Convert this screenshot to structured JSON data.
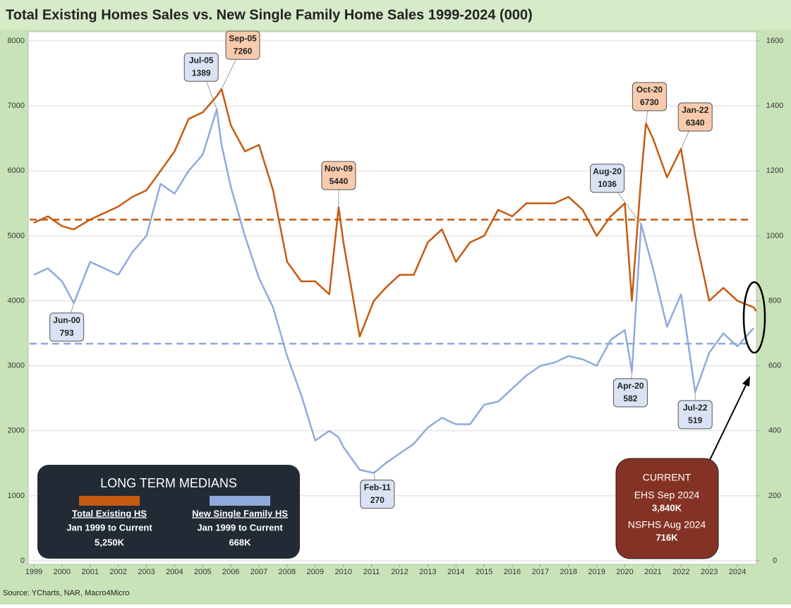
{
  "chart_data": {
    "type": "line",
    "title": "Total Existing Homes Sales vs. New Single Family Home Sales 1999-2024 (000)",
    "source": "Source: YCharts, NAR, Macro4Micro",
    "x": [
      1999.0,
      1999.5,
      2000.0,
      2000.42,
      2001.0,
      2001.5,
      2002.0,
      2002.5,
      2003.0,
      2003.5,
      2004.0,
      2004.5,
      2005.0,
      2005.5,
      2005.67,
      2006.0,
      2006.5,
      2007.0,
      2007.5,
      2008.0,
      2008.5,
      2009.0,
      2009.5,
      2009.83,
      2010.0,
      2010.58,
      2011.08,
      2011.5,
      2012.0,
      2012.5,
      2013.0,
      2013.5,
      2014.0,
      2014.5,
      2015.0,
      2015.5,
      2016.0,
      2016.5,
      2017.0,
      2017.5,
      2018.0,
      2018.5,
      2019.0,
      2019.5,
      2020.0,
      2020.25,
      2020.58,
      2020.75,
      2021.0,
      2021.5,
      2022.0,
      2022.5,
      2023.0,
      2023.5,
      2024.0,
      2024.58,
      2024.67
    ],
    "xlim": [
      1999,
      2024.7
    ],
    "xticks": [
      1999,
      2000,
      2001,
      2002,
      2003,
      2004,
      2005,
      2006,
      2007,
      2008,
      2009,
      2010,
      2011,
      2012,
      2013,
      2014,
      2015,
      2016,
      2017,
      2018,
      2019,
      2020,
      2021,
      2022,
      2023,
      2024
    ],
    "ylim": [
      0,
      8000
    ],
    "yticks": [
      0,
      1000,
      2000,
      3000,
      4000,
      5000,
      6000,
      7000,
      8000
    ],
    "y2lim": [
      0,
      1600
    ],
    "y2ticks": [
      0,
      200,
      400,
      600,
      800,
      1000,
      1200,
      1400,
      1600
    ],
    "grid": true,
    "legend_title": "LONG TERM MEDIANS",
    "series": [
      {
        "name": "Total Existing HS",
        "color": "#c55a11",
        "axis": "y",
        "values": [
          5200,
          5300,
          5150,
          5100,
          5250,
          5350,
          5450,
          5600,
          5700,
          6000,
          6300,
          6800,
          6900,
          7150,
          7260,
          6700,
          6300,
          6400,
          5700,
          4600,
          4300,
          4300,
          4100,
          5440,
          4900,
          3450,
          4000,
          4200,
          4400,
          4400,
          4900,
          5100,
          4600,
          4900,
          5000,
          5400,
          5300,
          5500,
          5500,
          5500,
          5600,
          5400,
          5000,
          5300,
          5500,
          4000,
          5900,
          6730,
          6500,
          5900,
          6340,
          5000,
          4000,
          4200,
          4000,
          3900,
          3840
        ],
        "point_labels": [
          null,
          null,
          null,
          null,
          null,
          null,
          null,
          null,
          null,
          null,
          null,
          null,
          null,
          null,
          "Sep-05",
          null,
          null,
          null,
          null,
          null,
          null,
          null,
          null,
          "Nov-09",
          null,
          null,
          null,
          null,
          null,
          null,
          null,
          null,
          null,
          null,
          null,
          null,
          null,
          null,
          null,
          null,
          null,
          null,
          null,
          null,
          null,
          null,
          null,
          "Oct-20",
          null,
          null,
          "Jan-22",
          null,
          null,
          null,
          null,
          null,
          null
        ],
        "median": {
          "value": 5250,
          "label": "5,250K"
        },
        "median_period": "Jan 1999 to Current"
      },
      {
        "name": "New Single Family HS",
        "color": "#8faadc",
        "axis": "y2",
        "values": [
          880,
          900,
          860,
          793,
          920,
          900,
          880,
          950,
          1000,
          1160,
          1130,
          1200,
          1250,
          1389,
          1280,
          1150,
          1000,
          870,
          780,
          630,
          510,
          370,
          400,
          380,
          350,
          280,
          270,
          300,
          330,
          360,
          410,
          440,
          420,
          420,
          480,
          490,
          530,
          570,
          600,
          610,
          630,
          620,
          600,
          680,
          710,
          582,
          1036,
          980,
          900,
          720,
          820,
          519,
          640,
          700,
          660,
          716,
          null
        ],
        "point_labels": [
          null,
          null,
          null,
          "Jun-00",
          null,
          null,
          null,
          null,
          null,
          null,
          null,
          null,
          null,
          "Jul-05",
          null,
          null,
          null,
          null,
          null,
          null,
          null,
          null,
          null,
          null,
          null,
          null,
          "Feb-11",
          null,
          null,
          null,
          null,
          null,
          null,
          null,
          null,
          null,
          null,
          null,
          null,
          null,
          null,
          null,
          null,
          null,
          null,
          "Apr-20",
          "Aug-20",
          null,
          null,
          null,
          null,
          "Jul-22",
          null,
          null,
          null,
          null,
          null
        ],
        "median": {
          "value": 668,
          "label": "668K"
        },
        "median_period": "Jan 1999 to Current"
      }
    ],
    "current_box": {
      "title": "CURRENT",
      "items": [
        {
          "label": "EHS Sep 2024",
          "value": "3,840K"
        },
        {
          "label": "NSFHS Aug 2024",
          "value": "716K"
        }
      ]
    }
  }
}
